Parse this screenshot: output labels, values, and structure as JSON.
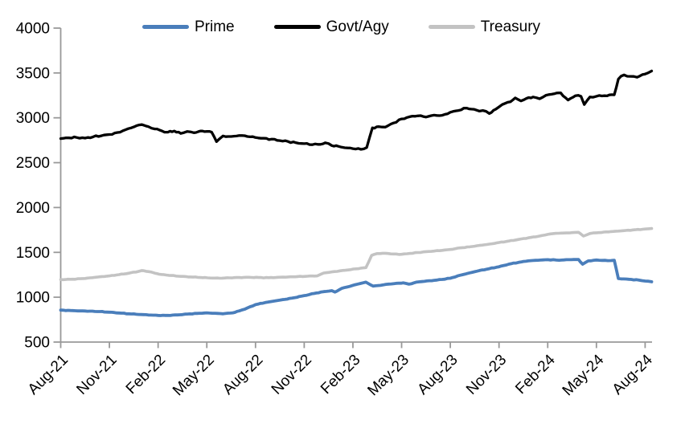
{
  "chart_data": {
    "type": "line",
    "title": "",
    "grid": false,
    "x_unit_note": "x values are months after Aug-2021 (0 = Aug-21, 36 = Aug-24)",
    "x_axis": {
      "tick_labels": [
        "Aug-21",
        "Nov-21",
        "Feb-22",
        "May-22",
        "Aug-22",
        "Nov-22",
        "Feb-23",
        "May-23",
        "Aug-23",
        "Nov-23",
        "Feb-24",
        "May-24",
        "Aug-24"
      ],
      "tick_positions_months": [
        0,
        3,
        6,
        9,
        12,
        15,
        18,
        21,
        24,
        27,
        30,
        33,
        36
      ],
      "label_rotation_deg": -45
    },
    "y_axis": {
      "min": 500,
      "max": 4000,
      "tick_interval": 500,
      "tick_values": [
        4000,
        3500,
        3000,
        2500,
        2000,
        1500,
        1000,
        500
      ],
      "tick_labels": [
        "4000",
        "3500",
        "3000",
        "2500",
        "2000",
        "1500",
        "1000",
        "500"
      ]
    },
    "legend": {
      "position": "top",
      "entries": [
        {
          "label": "Prime",
          "color": "#4a7ebb"
        },
        {
          "label": "Govt/Agy",
          "color": "#000000"
        },
        {
          "label": "Treasury",
          "color": "#c3c3c3"
        }
      ]
    },
    "series": [
      {
        "name": "Prime",
        "color": "#4a7ebb",
        "points": [
          [
            0,
            856
          ],
          [
            0.6,
            852
          ],
          [
            1.2,
            848
          ],
          [
            1.8,
            845
          ],
          [
            2.4,
            840
          ],
          [
            3,
            833
          ],
          [
            3.6,
            824
          ],
          [
            4.2,
            815
          ],
          [
            4.8,
            808
          ],
          [
            5.4,
            802
          ],
          [
            6,
            797
          ],
          [
            6.6,
            797
          ],
          [
            7.2,
            803
          ],
          [
            7.8,
            812
          ],
          [
            8.4,
            820
          ],
          [
            9,
            826
          ],
          [
            9.5,
            821
          ],
          [
            10,
            815
          ],
          [
            10.6,
            826
          ],
          [
            11,
            847
          ],
          [
            11.5,
            880
          ],
          [
            12,
            917
          ],
          [
            12.6,
            940
          ],
          [
            13.2,
            958
          ],
          [
            13.8,
            975
          ],
          [
            14.4,
            995
          ],
          [
            15,
            1018
          ],
          [
            15.6,
            1042
          ],
          [
            16.2,
            1062
          ],
          [
            16.7,
            1073
          ],
          [
            16.9,
            1058
          ],
          [
            17.3,
            1098
          ],
          [
            17.8,
            1120
          ],
          [
            18.3,
            1146
          ],
          [
            18.8,
            1168
          ],
          [
            19.25,
            1124
          ],
          [
            19.7,
            1132
          ],
          [
            20.2,
            1146
          ],
          [
            20.7,
            1155
          ],
          [
            21.1,
            1160
          ],
          [
            21.45,
            1145
          ],
          [
            21.9,
            1168
          ],
          [
            22.4,
            1177
          ],
          [
            23,
            1188
          ],
          [
            23.5,
            1198
          ],
          [
            24,
            1212
          ],
          [
            24.6,
            1245
          ],
          [
            25.2,
            1272
          ],
          [
            25.8,
            1298
          ],
          [
            26.4,
            1318
          ],
          [
            27,
            1340
          ],
          [
            27.6,
            1368
          ],
          [
            28.2,
            1388
          ],
          [
            28.8,
            1405
          ],
          [
            29.4,
            1412
          ],
          [
            30,
            1418
          ],
          [
            30.7,
            1412
          ],
          [
            31.3,
            1418
          ],
          [
            31.9,
            1420
          ],
          [
            32.15,
            1368
          ],
          [
            32.5,
            1405
          ],
          [
            33,
            1415
          ],
          [
            33.7,
            1408
          ],
          [
            34.1,
            1412
          ],
          [
            34.35,
            1208
          ],
          [
            35,
            1200
          ],
          [
            35.6,
            1192
          ],
          [
            36,
            1180
          ],
          [
            36.4,
            1172
          ]
        ]
      },
      {
        "name": "Govt/Agy",
        "color": "#000000",
        "points": [
          [
            0,
            2768
          ],
          [
            0.5,
            2776
          ],
          [
            1,
            2780
          ],
          [
            1.5,
            2774
          ],
          [
            2,
            2788
          ],
          [
            2.5,
            2800
          ],
          [
            3,
            2814
          ],
          [
            3.5,
            2836
          ],
          [
            4,
            2868
          ],
          [
            4.5,
            2898
          ],
          [
            5,
            2924
          ],
          [
            5.4,
            2902
          ],
          [
            5.8,
            2876
          ],
          [
            6.2,
            2856
          ],
          [
            6.6,
            2840
          ],
          [
            7,
            2852
          ],
          [
            7.4,
            2826
          ],
          [
            7.8,
            2848
          ],
          [
            8.2,
            2834
          ],
          [
            8.6,
            2852
          ],
          [
            9,
            2848
          ],
          [
            9.3,
            2840
          ],
          [
            9.6,
            2734
          ],
          [
            10,
            2798
          ],
          [
            10.5,
            2792
          ],
          [
            11,
            2802
          ],
          [
            11.5,
            2792
          ],
          [
            12,
            2780
          ],
          [
            12.5,
            2772
          ],
          [
            13,
            2762
          ],
          [
            13.5,
            2746
          ],
          [
            14,
            2736
          ],
          [
            14.5,
            2722
          ],
          [
            15,
            2712
          ],
          [
            15.5,
            2700
          ],
          [
            16,
            2704
          ],
          [
            16.3,
            2722
          ],
          [
            16.7,
            2690
          ],
          [
            17.1,
            2682
          ],
          [
            17.5,
            2666
          ],
          [
            18,
            2656
          ],
          [
            18.5,
            2648
          ],
          [
            18.85,
            2668
          ],
          [
            19.2,
            2888
          ],
          [
            19.6,
            2902
          ],
          [
            20,
            2896
          ],
          [
            20.5,
            2942
          ],
          [
            21,
            2988
          ],
          [
            21.5,
            3012
          ],
          [
            22,
            3022
          ],
          [
            22.5,
            3008
          ],
          [
            23,
            3030
          ],
          [
            23.5,
            3028
          ],
          [
            24,
            3062
          ],
          [
            24.5,
            3082
          ],
          [
            25,
            3108
          ],
          [
            25.6,
            3086
          ],
          [
            26,
            3082
          ],
          [
            26.4,
            3048
          ],
          [
            26.8,
            3096
          ],
          [
            27.2,
            3148
          ],
          [
            27.7,
            3178
          ],
          [
            28,
            3222
          ],
          [
            28.35,
            3188
          ],
          [
            28.7,
            3218
          ],
          [
            29.1,
            3232
          ],
          [
            29.5,
            3212
          ],
          [
            29.9,
            3252
          ],
          [
            30.4,
            3268
          ],
          [
            30.8,
            3278
          ],
          [
            31.25,
            3198
          ],
          [
            31.7,
            3246
          ],
          [
            32.05,
            3240
          ],
          [
            32.25,
            3148
          ],
          [
            32.6,
            3232
          ],
          [
            33,
            3240
          ],
          [
            33.5,
            3246
          ],
          [
            34.1,
            3256
          ],
          [
            34.35,
            3432
          ],
          [
            34.7,
            3478
          ],
          [
            35.1,
            3462
          ],
          [
            35.5,
            3452
          ],
          [
            36,
            3488
          ],
          [
            36.4,
            3522
          ]
        ]
      },
      {
        "name": "Treasury",
        "color": "#c3c3c3",
        "points": [
          [
            0,
            1196
          ],
          [
            0.6,
            1200
          ],
          [
            1.2,
            1206
          ],
          [
            1.8,
            1216
          ],
          [
            2.4,
            1228
          ],
          [
            3,
            1238
          ],
          [
            3.6,
            1252
          ],
          [
            4.2,
            1268
          ],
          [
            4.8,
            1288
          ],
          [
            5,
            1298
          ],
          [
            5.4,
            1286
          ],
          [
            5.8,
            1268
          ],
          [
            6.2,
            1254
          ],
          [
            6.8,
            1242
          ],
          [
            7.4,
            1232
          ],
          [
            8,
            1226
          ],
          [
            8.6,
            1220
          ],
          [
            9.2,
            1214
          ],
          [
            9.8,
            1212
          ],
          [
            10.4,
            1216
          ],
          [
            11,
            1220
          ],
          [
            11.6,
            1222
          ],
          [
            12.2,
            1220
          ],
          [
            12.8,
            1218
          ],
          [
            13.4,
            1222
          ],
          [
            14,
            1226
          ],
          [
            14.6,
            1230
          ],
          [
            15.2,
            1234
          ],
          [
            15.8,
            1238
          ],
          [
            16.2,
            1270
          ],
          [
            16.7,
            1282
          ],
          [
            17.2,
            1294
          ],
          [
            17.7,
            1304
          ],
          [
            18.2,
            1316
          ],
          [
            18.8,
            1330
          ],
          [
            19.15,
            1466
          ],
          [
            19.5,
            1486
          ],
          [
            20,
            1490
          ],
          [
            20.5,
            1482
          ],
          [
            21,
            1478
          ],
          [
            21.5,
            1488
          ],
          [
            22,
            1498
          ],
          [
            22.5,
            1508
          ],
          [
            23,
            1514
          ],
          [
            23.5,
            1522
          ],
          [
            24,
            1532
          ],
          [
            24.6,
            1550
          ],
          [
            25.2,
            1562
          ],
          [
            25.8,
            1578
          ],
          [
            26.4,
            1592
          ],
          [
            27,
            1610
          ],
          [
            27.6,
            1626
          ],
          [
            28.2,
            1644
          ],
          [
            28.8,
            1662
          ],
          [
            29.4,
            1678
          ],
          [
            30,
            1700
          ],
          [
            30.5,
            1712
          ],
          [
            31,
            1716
          ],
          [
            31.5,
            1720
          ],
          [
            31.9,
            1724
          ],
          [
            32.2,
            1682
          ],
          [
            32.6,
            1710
          ],
          [
            33,
            1718
          ],
          [
            33.6,
            1728
          ],
          [
            34.2,
            1736
          ],
          [
            34.8,
            1744
          ],
          [
            35.4,
            1752
          ],
          [
            36,
            1760
          ],
          [
            36.4,
            1766
          ]
        ]
      }
    ]
  }
}
